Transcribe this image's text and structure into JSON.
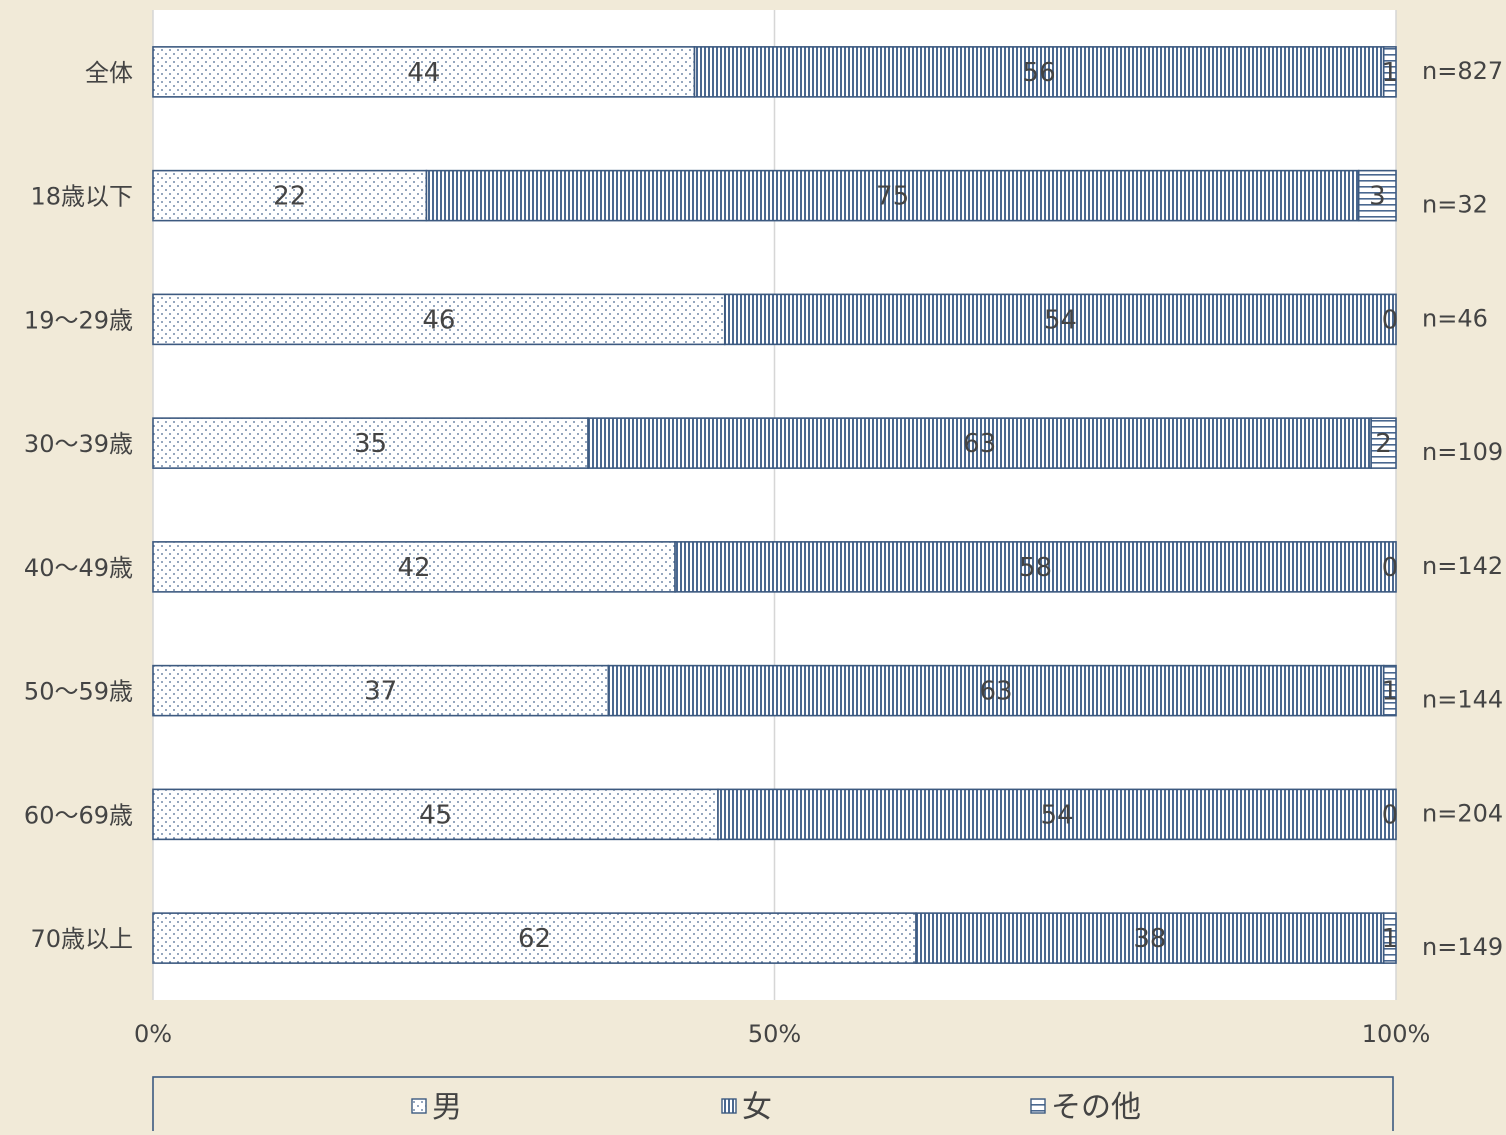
{
  "chart_data": {
    "type": "bar",
    "orientation": "horizontal",
    "stacked": true,
    "percent_stacked": true,
    "categories": [
      "全体",
      "18歳以下",
      "19～29歳",
      "30～39歳",
      "40～49歳",
      "50～59歳",
      "60～69歳",
      "70歳以上"
    ],
    "series": [
      {
        "name": "男",
        "values": [
          44,
          22,
          46,
          35,
          42,
          37,
          45,
          62
        ]
      },
      {
        "name": "女",
        "values": [
          56,
          75,
          54,
          63,
          58,
          63,
          54,
          38
        ]
      },
      {
        "name": "その他",
        "values": [
          1,
          3,
          0,
          2,
          0,
          1,
          0,
          1
        ]
      }
    ],
    "sample_sizes": [
      "n=827",
      "n=32",
      "n=46",
      "n=109",
      "n=142",
      "n=144",
      "n=204",
      "n=149"
    ],
    "x_ticks": [
      "0%",
      "50%",
      "100%"
    ],
    "xlim": [
      0,
      100
    ],
    "grid": true,
    "legend": {
      "placement": "bottom",
      "entries": [
        "男",
        "女",
        "その他"
      ]
    },
    "title": "",
    "xlabel": "",
    "ylabel": ""
  },
  "colors": {
    "background": "#f1ead8",
    "plot_area": "#ffffff",
    "bar_outline": "#3d5a80",
    "pattern": "#4a6890",
    "text": "#444444",
    "grid": "#d6d6d6"
  }
}
